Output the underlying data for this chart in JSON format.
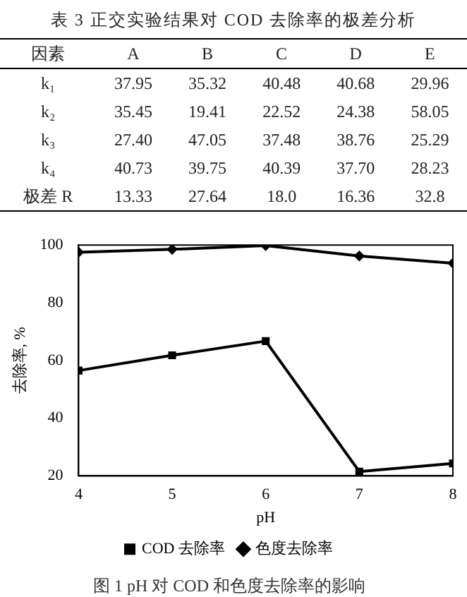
{
  "chart_data": [
    {
      "type": "other",
      "title": "表 3 正交实验结果对 COD 去除率的极差分析",
      "categories": [
        "因素",
        "A",
        "B",
        "C",
        "D",
        "E"
      ],
      "y_categories": [
        "k₁",
        "k₂",
        "k₃",
        "k₄",
        "极差 R"
      ],
      "cell_labels": [
        [
          "37.95",
          "35.32",
          "40.48",
          "40.68",
          "29.96"
        ],
        [
          "35.45",
          "19.41",
          "22.52",
          "24.38",
          "58.05"
        ],
        [
          "27.40",
          "47.05",
          "37.48",
          "38.76",
          "25.29"
        ],
        [
          "40.73",
          "39.75",
          "40.39",
          "37.70",
          "28.23"
        ],
        [
          "13.33",
          "27.64",
          "18.0",
          "16.36",
          "32.8"
        ]
      ]
    },
    {
      "type": "line",
      "title": "图 1 pH 对 COD 和色度去除率的影响",
      "xlabel": "pH",
      "ylabel": "去除率, %",
      "x": [
        4,
        5,
        6,
        7,
        8
      ],
      "series": [
        {
          "name": "COD 去除率",
          "color": "#000000",
          "marker": "square",
          "values": [
            56.5,
            61.8,
            66.7,
            21.5,
            24.3
          ]
        },
        {
          "name": "色度去除率",
          "color": "#000000",
          "marker": "diamond",
          "values": [
            97.5,
            98.5,
            99.8,
            96.2,
            93.7
          ]
        }
      ],
      "xlim": [
        4,
        8
      ],
      "xticks": [
        4,
        5,
        6,
        7,
        8
      ],
      "ylim": [
        20,
        100
      ],
      "yticks": [
        20,
        40,
        60,
        80,
        100
      ],
      "grid": false,
      "legend": "bottom",
      "line_style": "solid"
    }
  ]
}
